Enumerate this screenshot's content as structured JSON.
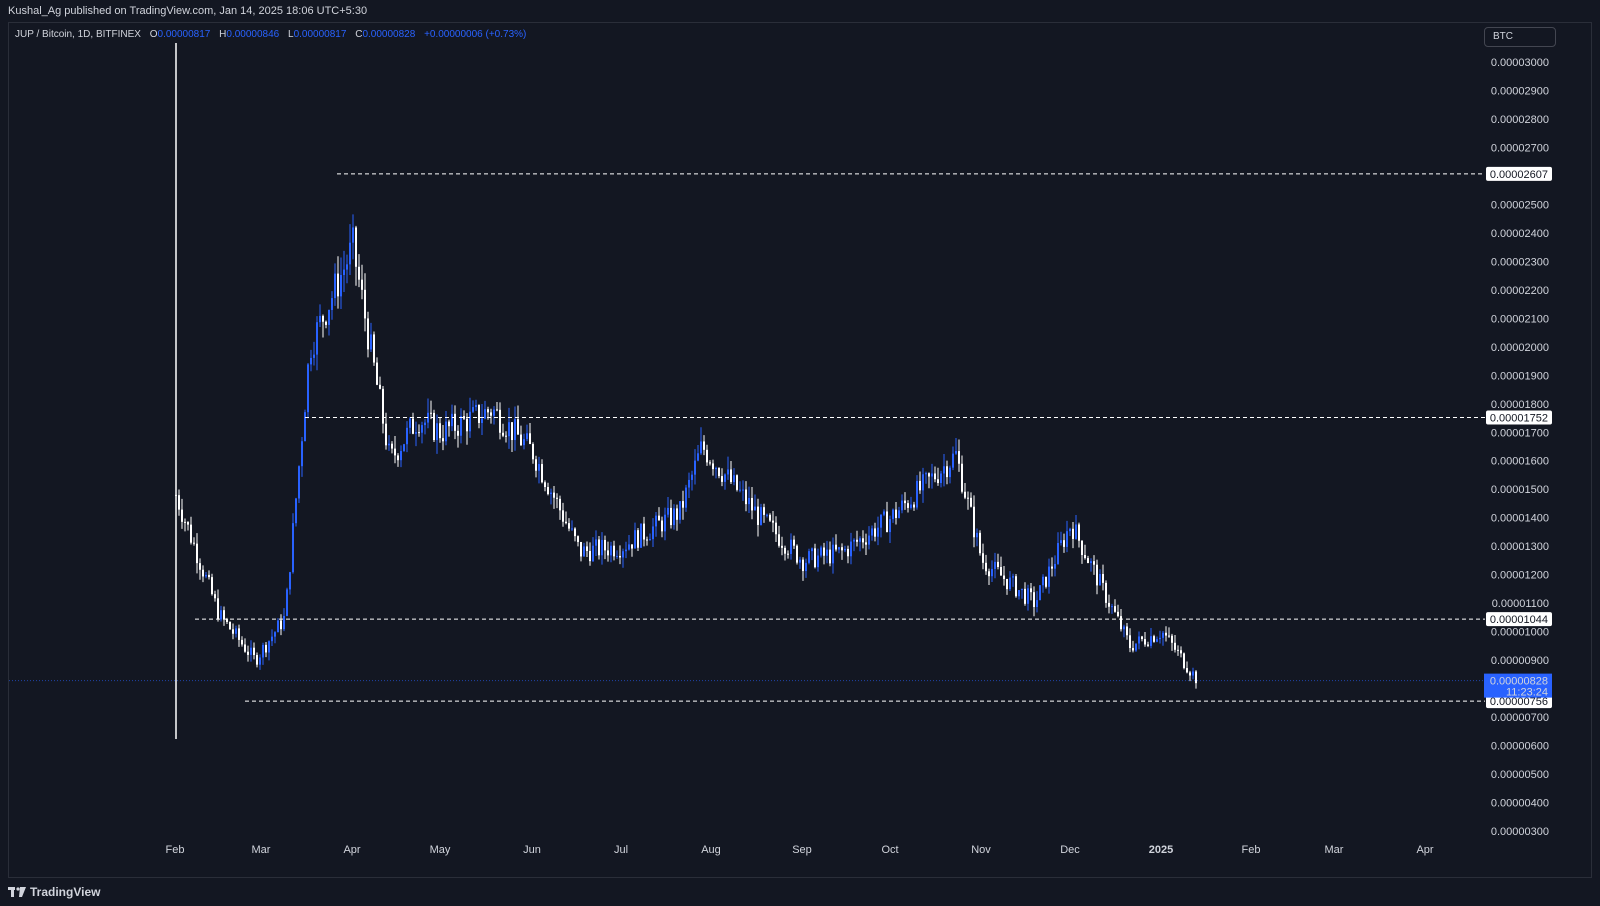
{
  "header": {
    "publisher": "Kushal_Ag published on TradingView.com, Jan 14, 2025 18:06 UTC+5:30"
  },
  "legend": {
    "symbol": "JUP / Bitcoin, 1D, BITFINEX",
    "o_key": "O",
    "o_val": "0.00000817",
    "h_key": "H",
    "h_val": "0.00000846",
    "l_key": "L",
    "l_val": "0.00000817",
    "c_key": "C",
    "c_val": "0.00000828",
    "change": "+0.00000006 (+0.73%)"
  },
  "currency_button": "BTC",
  "price_axis": {
    "labels": [
      "0.00003000",
      "0.00002900",
      "0.00002800",
      "0.00002700",
      "0.00002500",
      "0.00002400",
      "0.00002300",
      "0.00002200",
      "0.00002100",
      "0.00002000",
      "0.00001900",
      "0.00001800",
      "0.00001700",
      "0.00001600",
      "0.00001500",
      "0.00001400",
      "0.00001300",
      "0.00001200",
      "0.00001100",
      "0.00001000",
      "0.00000900",
      "0.00000700",
      "0.00000600",
      "0.00000500",
      "0.00000400",
      "0.00000300"
    ]
  },
  "time_axis": {
    "labels": [
      "Feb",
      "Mar",
      "Apr",
      "May",
      "Jun",
      "Jul",
      "Aug",
      "Sep",
      "Oct",
      "Nov",
      "Dec",
      "2025",
      "Feb",
      "Mar",
      "Apr"
    ]
  },
  "levels": [
    {
      "price": "0.00002607"
    },
    {
      "price": "0.00001752"
    },
    {
      "price": "0.00001044"
    },
    {
      "price": "0.00000756"
    }
  ],
  "current_price": {
    "price": "0.00000828",
    "countdown": "11:23:24",
    "color": "#2962ff"
  },
  "colors": {
    "up": "#2962ff",
    "down": "#ffffff",
    "background": "#131722"
  },
  "footer": {
    "brand": "TradingView"
  },
  "chart_data": {
    "type": "candlestick",
    "symbol": "JUP / Bitcoin",
    "interval": "1D",
    "ylim": [
      2.5e-06,
      3.1e-06
    ],
    "x": [
      "2024-01-31",
      "2024-02-15",
      "2024-02-27",
      "2024-03-10",
      "2024-03-18",
      "2024-03-31",
      "2024-04-10",
      "2024-04-20",
      "2024-05-01",
      "2024-05-18",
      "2024-06-01",
      "2024-06-17",
      "2024-07-01",
      "2024-07-20",
      "2024-07-28",
      "2024-08-15",
      "2024-09-01",
      "2024-09-15",
      "2024-10-01",
      "2024-10-22",
      "2024-11-01",
      "2024-11-20",
      "2024-12-01",
      "2024-12-15",
      "2025-01-01",
      "2025-01-14"
    ],
    "close": [
      1.48e-05,
      1.06e-05,
      9e-06,
      1.05e-05,
      2e-05,
      2.35e-05,
      1.6e-05,
      1.75e-05,
      1.7e-05,
      1.78e-05,
      1.63e-05,
      1.28e-05,
      1.3e-05,
      1.42e-05,
      1.65e-05,
      1.4e-05,
      1.25e-05,
      1.28e-05,
      1.4e-05,
      1.62e-05,
      1.25e-05,
      1.1e-05,
      1.38e-05,
      9.5e-06,
      1e-05,
      8.28e-06
    ]
  }
}
